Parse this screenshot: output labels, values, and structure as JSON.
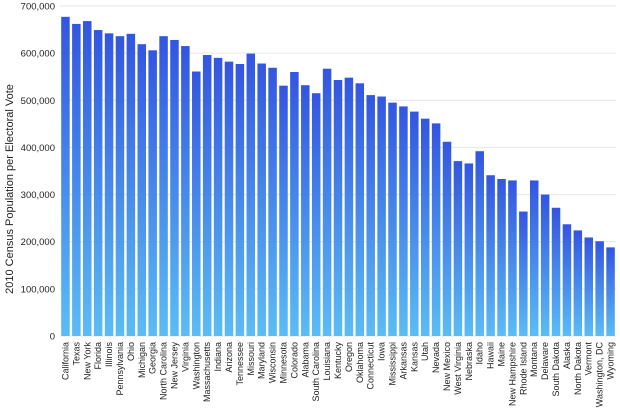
{
  "chart_data": {
    "type": "bar",
    "title": "",
    "xlabel": "",
    "ylabel": "2010 Census Population per Electoral Vote",
    "ylim": [
      0,
      700000
    ],
    "yticks": [
      0,
      100000,
      200000,
      300000,
      400000,
      500000,
      600000,
      700000
    ],
    "ytick_labels": [
      "0",
      "100,000",
      "200,000",
      "300,000",
      "400,000",
      "500,000",
      "600,000",
      "700,000"
    ],
    "grid": true,
    "legend": "none",
    "bar_color_top": "#3355e0",
    "bar_color_bottom": "#5bbdf5",
    "categories": [
      "California",
      "Texas",
      "New York",
      "Florida",
      "Illinois",
      "Pennsylvania",
      "Ohio",
      "Michigan",
      "Georgia",
      "North Carolina",
      "New Jersey",
      "Virginia",
      "Washington",
      "Massachusetts",
      "Indiana",
      "Arizona",
      "Tennessee",
      "Missouri",
      "Maryland",
      "Wisconsin",
      "Minnesota",
      "Colorado",
      "Alabama",
      "South Carolina",
      "Louisiana",
      "Kentucky",
      "Oregon",
      "Oklahoma",
      "Connecticut",
      "Iowa",
      "Mississippi",
      "Arkansas",
      "Kansas",
      "Utah",
      "Nevada",
      "New Mexico",
      "West Virginia",
      "Nebraska",
      "Idaho",
      "Hawaii",
      "Maine",
      "New Hampshire",
      "Rhode Island",
      "Montana",
      "Delaware",
      "South Dakota",
      "Alaska",
      "North Dakota",
      "Vermont",
      "Washington, DC",
      "Wyoming"
    ],
    "values": [
      677000,
      662000,
      668000,
      649000,
      642000,
      636000,
      641000,
      619000,
      606000,
      636000,
      628000,
      615000,
      561000,
      596000,
      590000,
      582000,
      577000,
      599000,
      578000,
      569000,
      531000,
      560000,
      532000,
      515000,
      567000,
      543000,
      548000,
      536000,
      511000,
      508000,
      495000,
      487000,
      476000,
      461000,
      451000,
      412000,
      371000,
      366000,
      392000,
      341000,
      333000,
      330000,
      264000,
      330000,
      300000,
      272000,
      237000,
      224000,
      209000,
      201000,
      188000
    ]
  }
}
